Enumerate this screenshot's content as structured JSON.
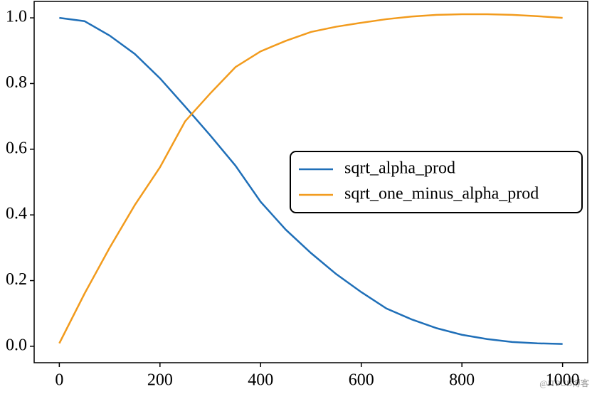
{
  "chart_data": {
    "type": "line",
    "x": [
      0,
      50,
      100,
      150,
      200,
      250,
      300,
      350,
      400,
      450,
      500,
      550,
      600,
      650,
      700,
      750,
      800,
      850,
      900,
      950,
      1000
    ],
    "series": [
      {
        "name": "sqrt_alpha_prod",
        "color": "#1f6fb8",
        "values": [
          1.0,
          0.99,
          0.946,
          0.89,
          0.816,
          0.73,
          0.642,
          0.55,
          0.44,
          0.355,
          0.284,
          0.22,
          0.165,
          0.115,
          0.082,
          0.055,
          0.035,
          0.022,
          0.013,
          0.009,
          0.007
        ]
      },
      {
        "name": "sqrt_one_minus_alpha_prod",
        "color": "#f29b1d",
        "values": [
          0.009,
          0.16,
          0.3,
          0.43,
          0.545,
          0.685,
          0.77,
          0.85,
          0.898,
          0.93,
          0.957,
          0.973,
          0.985,
          0.996,
          1.004,
          1.009,
          1.011,
          1.011,
          1.009,
          1.005,
          1.0
        ]
      }
    ],
    "xlim": [
      -50,
      1050
    ],
    "ylim": [
      -0.05,
      1.05
    ],
    "xticks": [
      0,
      200,
      400,
      600,
      800,
      1000
    ],
    "yticks": [
      {
        "value": 0,
        "label": "0.0"
      },
      0.2,
      0.4,
      0.6,
      0.8,
      {
        "value": 1,
        "label": "1.0"
      }
    ],
    "legend": "center right",
    "watermark": "@ITPUB博客"
  }
}
